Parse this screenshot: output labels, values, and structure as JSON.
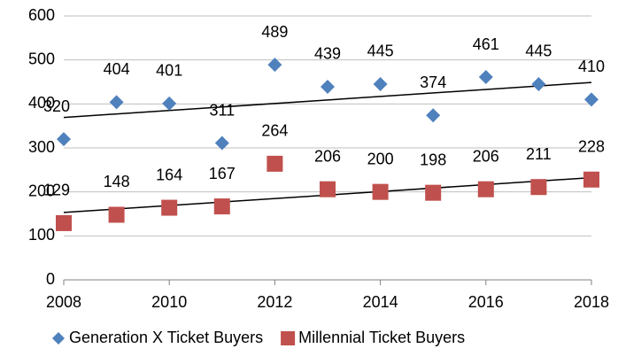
{
  "chart_data": {
    "type": "scatter",
    "x": [
      2008,
      2009,
      2010,
      2011,
      2012,
      2013,
      2014,
      2015,
      2016,
      2017,
      2018
    ],
    "series": [
      {
        "name": "Generation X Ticket Buyers",
        "color": "#4f81bd",
        "marker": "diamond",
        "values": [
          320,
          404,
          401,
          311,
          489,
          439,
          445,
          374,
          461,
          445,
          410
        ]
      },
      {
        "name": "Millennial Ticket Buyers",
        "color": "#c0504d",
        "marker": "square",
        "values": [
          129,
          148,
          164,
          167,
          264,
          206,
          200,
          198,
          206,
          211,
          228
        ]
      }
    ],
    "xlim": [
      2008,
      2018
    ],
    "xticks": [
      2008,
      2010,
      2012,
      2014,
      2016,
      2018
    ],
    "ylim": [
      0,
      600
    ],
    "yticks": [
      0,
      100,
      200,
      300,
      400,
      500,
      600
    ],
    "grid": true,
    "trendline": "linear",
    "legend": "bottom",
    "data_labels": true
  }
}
